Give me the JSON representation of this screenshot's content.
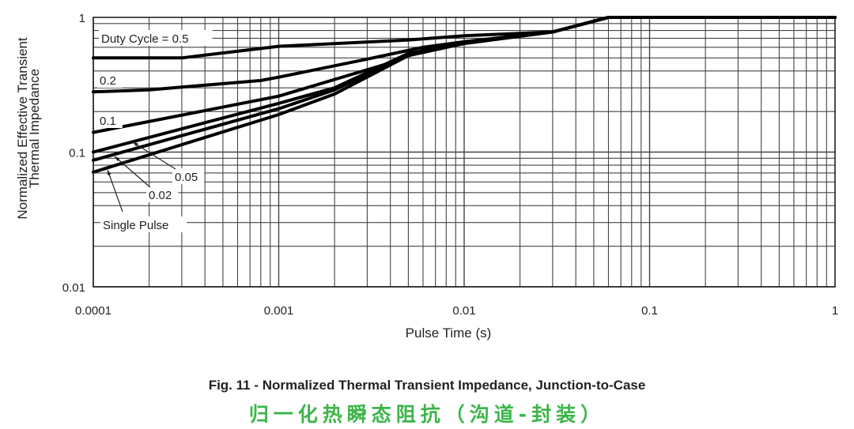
{
  "chart_data": {
    "type": "line",
    "title": "Fig. 11 - Normalized Thermal Transient Impedance, Junction-to-Case",
    "subtitle": "归一化热瞬态阻抗（沟道-封装）",
    "xlabel": "Pulse Time (s)",
    "ylabel": [
      "Normalized Effective Transient",
      "Thermal Impedance"
    ],
    "xscale": "log",
    "yscale": "log",
    "xlim": [
      0.0001,
      1
    ],
    "ylim": [
      0.01,
      1
    ],
    "xticks": [
      0.0001,
      0.001,
      0.01,
      0.1,
      1
    ],
    "xtick_labels": [
      "0.0001",
      "0.001",
      "0.01",
      "0.1",
      "1"
    ],
    "yticks": [
      0.01,
      0.1,
      1
    ],
    "ytick_labels": [
      "0.01",
      "0.1",
      "1"
    ],
    "grid": true,
    "line_color": "#000000",
    "series": [
      {
        "name": "Duty Cycle = 0.5",
        "x": [
          0.0001,
          0.0003,
          0.001,
          0.005,
          0.01,
          0.03,
          0.06,
          1
        ],
        "y": [
          0.5,
          0.5,
          0.61,
          0.68,
          0.73,
          0.78,
          1,
          1
        ]
      },
      {
        "name": "0.2",
        "x": [
          0.0001,
          0.0002,
          0.0008,
          0.001,
          0.003,
          0.006,
          0.01,
          0.03,
          0.06,
          1
        ],
        "y": [
          0.28,
          0.29,
          0.34,
          0.36,
          0.49,
          0.6,
          0.66,
          0.78,
          1,
          1
        ]
      },
      {
        "name": "0.1",
        "x": [
          0.0001,
          0.001,
          0.004,
          0.006,
          0.01,
          0.03,
          0.06,
          1
        ],
        "y": [
          0.14,
          0.26,
          0.46,
          0.57,
          0.65,
          0.78,
          1,
          1
        ]
      },
      {
        "name": "0.05",
        "x": [
          0.0001,
          0.001,
          0.002,
          0.005,
          0.01,
          0.03,
          0.06,
          1
        ],
        "y": [
          0.1,
          0.23,
          0.3,
          0.54,
          0.64,
          0.78,
          1,
          1
        ]
      },
      {
        "name": "0.02",
        "x": [
          0.0001,
          0.001,
          0.002,
          0.005,
          0.01,
          0.03,
          0.06,
          1
        ],
        "y": [
          0.087,
          0.21,
          0.29,
          0.53,
          0.64,
          0.78,
          1,
          1
        ]
      },
      {
        "name": "Single Pulse",
        "x": [
          0.0001,
          0.001,
          0.002,
          0.005,
          0.01,
          0.03,
          0.06,
          1
        ],
        "y": [
          0.071,
          0.19,
          0.27,
          0.52,
          0.64,
          0.78,
          1,
          1
        ]
      }
    ]
  }
}
